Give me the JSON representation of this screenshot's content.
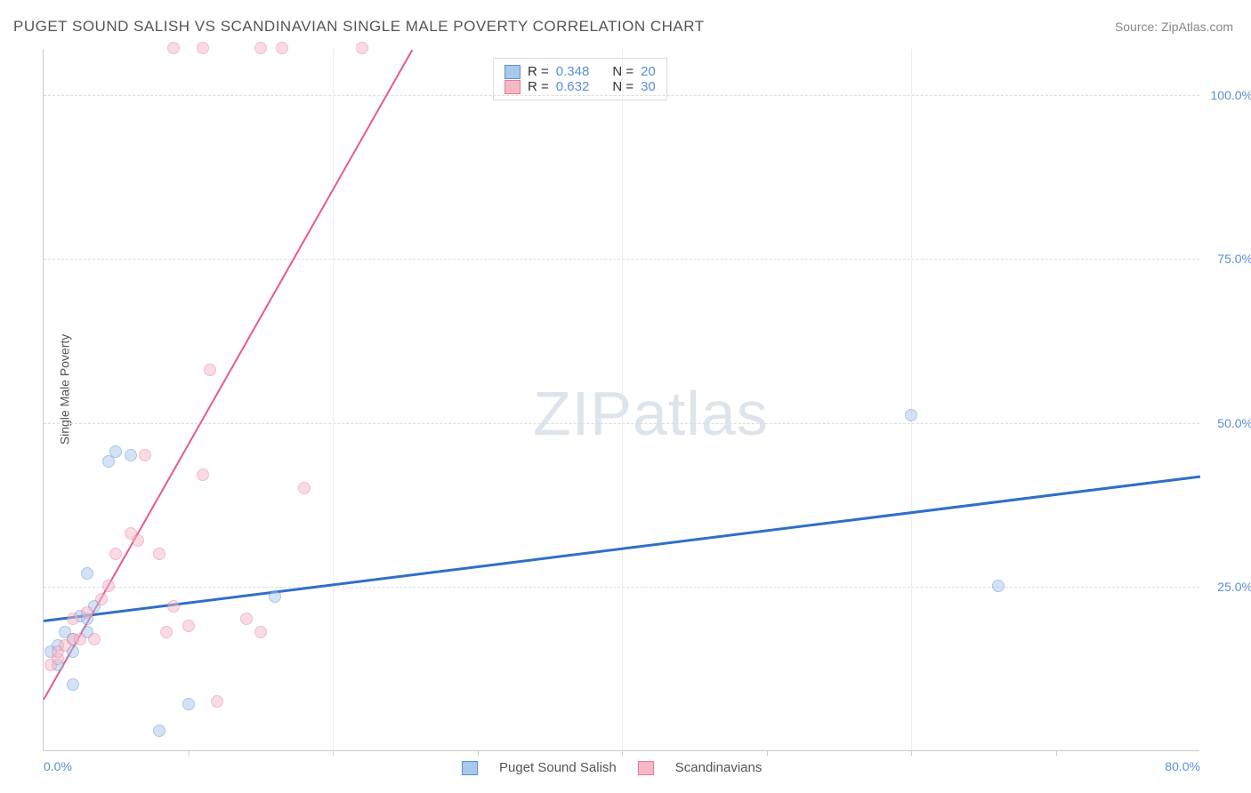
{
  "title": "PUGET SOUND SALISH VS SCANDINAVIAN SINGLE MALE POVERTY CORRELATION CHART",
  "source": "Source: ZipAtlas.com",
  "y_axis_label": "Single Male Poverty",
  "watermark": {
    "zip": "ZIP",
    "atlas": "atlas"
  },
  "chart": {
    "type": "scatter",
    "xlim": [
      0,
      80
    ],
    "ylim": [
      0,
      107
    ],
    "background_color": "#ffffff",
    "grid_color": "#dddddd",
    "axis_color": "#cccccc",
    "point_radius": 7,
    "point_opacity": 0.5,
    "y_ticks": [
      {
        "v": 25,
        "label": "25.0%"
      },
      {
        "v": 50,
        "label": "50.0%"
      },
      {
        "v": 75,
        "label": "75.0%"
      },
      {
        "v": 100,
        "label": "100.0%"
      }
    ],
    "x_ticks": [
      {
        "v": 0,
        "label": "0.0%",
        "pos": "first"
      },
      {
        "v": 20,
        "label": ""
      },
      {
        "v": 40,
        "label": ""
      },
      {
        "v": 60,
        "label": ""
      },
      {
        "v": 80,
        "label": "80.0%",
        "pos": "last"
      }
    ],
    "x_minor_ticks": [
      10,
      20,
      30,
      40,
      50,
      60,
      70
    ]
  },
  "series": [
    {
      "name": "Puget Sound Salish",
      "fill": "#a8c8ec",
      "stroke": "#5a8fd6",
      "trend_color": "#2f6fc9",
      "trend_width": 2.5,
      "R": "0.348",
      "N": "20",
      "trend": {
        "x1": 0,
        "y1": 20,
        "x2": 80,
        "y2": 42
      },
      "points": [
        [
          0.5,
          15
        ],
        [
          1,
          16
        ],
        [
          1,
          13
        ],
        [
          1.5,
          18
        ],
        [
          2,
          17
        ],
        [
          2,
          15
        ],
        [
          2,
          10
        ],
        [
          2.5,
          20.5
        ],
        [
          3,
          20
        ],
        [
          3,
          18
        ],
        [
          3.5,
          22
        ],
        [
          3,
          27
        ],
        [
          4.5,
          44
        ],
        [
          5,
          45.5
        ],
        [
          6,
          45
        ],
        [
          8,
          3
        ],
        [
          10,
          7
        ],
        [
          16,
          23.5
        ],
        [
          60,
          51
        ],
        [
          66,
          25
        ]
      ]
    },
    {
      "name": "Scandinavians",
      "fill": "#f5b8c8",
      "stroke": "#e87a9a",
      "trend_color": "#e85a88",
      "trend_width": 2,
      "R": "0.632",
      "N": "30",
      "trend": {
        "x1": 0,
        "y1": 8,
        "x2": 25.5,
        "y2": 107
      },
      "points": [
        [
          0.5,
          13
        ],
        [
          1,
          14
        ],
        [
          1,
          15
        ],
        [
          1.5,
          16
        ],
        [
          2,
          17
        ],
        [
          2,
          20
        ],
        [
          2.5,
          17
        ],
        [
          3,
          21
        ],
        [
          3.5,
          17
        ],
        [
          4,
          23
        ],
        [
          4.5,
          25
        ],
        [
          5,
          30
        ],
        [
          6,
          33
        ],
        [
          6.5,
          32
        ],
        [
          7,
          45
        ],
        [
          8,
          30
        ],
        [
          8.5,
          18
        ],
        [
          9,
          22
        ],
        [
          10,
          19
        ],
        [
          11,
          42
        ],
        [
          12,
          7.5
        ],
        [
          11.5,
          58
        ],
        [
          14,
          20
        ],
        [
          15,
          18
        ],
        [
          18,
          40
        ],
        [
          9,
          107
        ],
        [
          11,
          107
        ],
        [
          15,
          107
        ],
        [
          16.5,
          107
        ],
        [
          22,
          107
        ]
      ]
    }
  ],
  "stats_legend": {
    "r_label": "R =",
    "n_label": "N ="
  },
  "bottom_legend": {
    "items": [
      "Puget Sound Salish",
      "Scandinavians"
    ]
  }
}
